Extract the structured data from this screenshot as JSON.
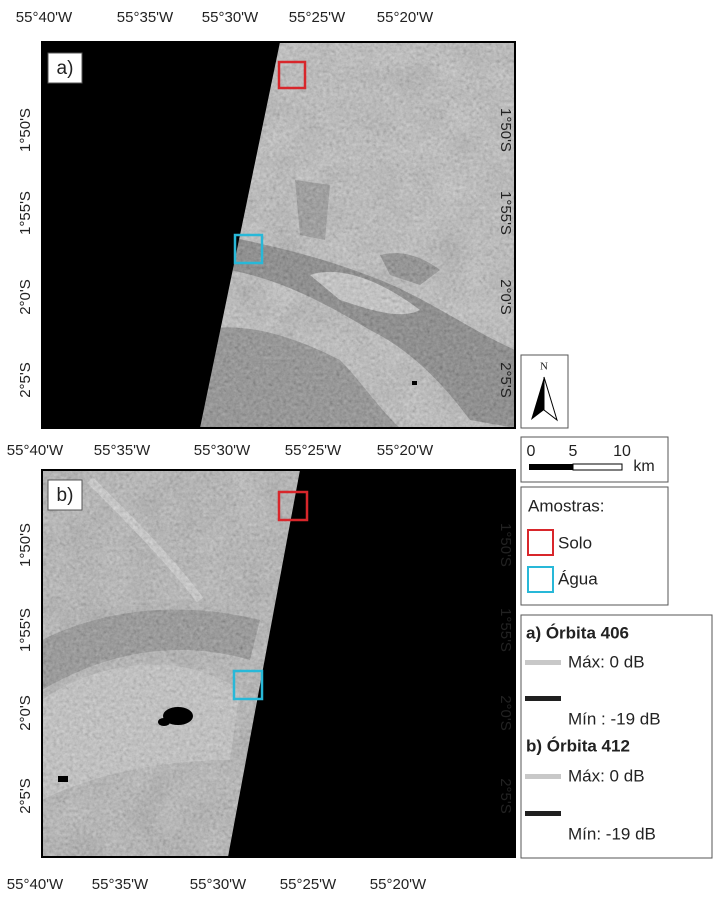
{
  "panels": [
    {
      "label": "a)",
      "top_labels": [
        "55°40'W",
        "55°35'W",
        "55°30'W",
        "55°25'W",
        "55°20'W"
      ],
      "left_labels": [
        "1°50'S",
        "1°55'S",
        "2°0'S",
        "2°5'S"
      ],
      "right_labels": [
        "1°50'S",
        "1°55'S",
        "2°0'S",
        "2°5'S"
      ]
    },
    {
      "label": "b)",
      "top_labels": [
        "55°40'W",
        "55°35'W",
        "55°30'W",
        "55°25'W",
        "55°20'W"
      ],
      "bottom_labels": [
        "55°40'W",
        "55°35'W",
        "55°30'W",
        "55°25'W",
        "55°20'W"
      ],
      "left_labels": [
        "1°50'S",
        "1°55'S",
        "2°0'S",
        "2°5'S"
      ],
      "right_labels": [
        "1°50'S",
        "1°55'S",
        "2°0'S",
        "2°5'S"
      ]
    }
  ],
  "north": "N",
  "scale": {
    "ticks": [
      "0",
      "5",
      "10"
    ],
    "unit": "km"
  },
  "samples": {
    "title": "Amostras:",
    "items": [
      "Solo",
      "Água"
    ]
  },
  "legend": [
    {
      "title": "a) Órbita 406",
      "max": "Máx: 0 dB",
      "min": "Mín : -19 dB"
    },
    {
      "title": "b) Órbita 412",
      "max": "Máx: 0 dB",
      "min": "Mín: -19 dB"
    }
  ]
}
